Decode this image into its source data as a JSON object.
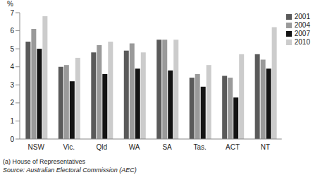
{
  "chart_data": {
    "type": "bar",
    "y_label": "%",
    "categories": [
      "NSW",
      "Vic.",
      "Qld",
      "WA",
      "SA",
      "Tas.",
      "ACT",
      "NT"
    ],
    "series": [
      {
        "name": "2001",
        "color": "#5a5a5a",
        "values": [
          5.4,
          4.0,
          4.8,
          4.9,
          5.5,
          3.4,
          3.5,
          4.7
        ]
      },
      {
        "name": "2004",
        "color": "#9a9a9a",
        "values": [
          6.1,
          4.1,
          5.2,
          5.3,
          5.5,
          3.6,
          3.4,
          4.4
        ]
      },
      {
        "name": "2007",
        "color": "#141414",
        "values": [
          5.0,
          3.2,
          3.6,
          3.9,
          3.8,
          2.9,
          2.3,
          3.9
        ]
      },
      {
        "name": "2010",
        "color": "#cccccc",
        "values": [
          6.8,
          4.5,
          5.4,
          4.8,
          5.5,
          4.1,
          4.7,
          6.2
        ]
      }
    ],
    "ylim": [
      0,
      7
    ],
    "yticks": [
      0,
      1,
      2,
      3,
      4,
      5,
      6,
      7
    ],
    "grid": false,
    "legend": "top-right",
    "annotations": [
      "(a) House of Representatives",
      "Source: Australian Electoral Commission (AEC)"
    ]
  }
}
